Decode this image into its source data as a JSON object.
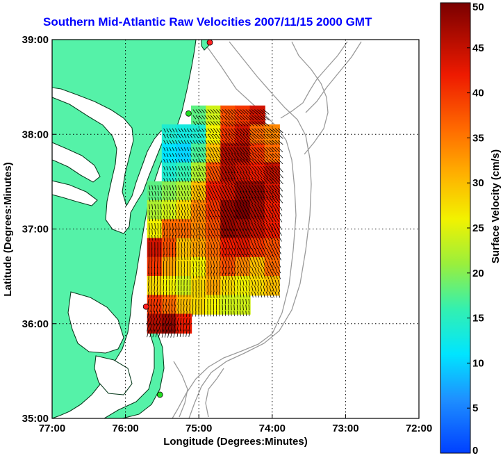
{
  "title": "Southern Mid-Atlantic Raw Velocities 2007/11/15 2000 GMT",
  "xlabel": "Longitude (Degrees:Minutes)",
  "ylabel": "Latitude (Degrees:Minutes)",
  "colorbar": {
    "label": "Surface Velocity (cm/s)",
    "min": 0,
    "max": 50,
    "ticks": [
      "0",
      "5",
      "10",
      "15",
      "20",
      "25",
      "30",
      "35",
      "40",
      "45",
      "50"
    ]
  },
  "x_ticks": [
    "77:00",
    "76:00",
    "75:00",
    "74:00",
    "73:00",
    "72:00"
  ],
  "y_ticks": [
    "39:00",
    "38:00",
    "37:00",
    "36:00",
    "35:00"
  ],
  "colors": {
    "land": "#55f2a8",
    "coast": "#0b3d20",
    "bathymetry": "#9a9a9a",
    "stations": "#ff2020",
    "stations_alt": "#22dd22",
    "title": "#0000ff"
  },
  "chart_data": {
    "type": "heatmap",
    "title": "Southern Mid-Atlantic Raw Velocities 2007/11/15 2000 GMT",
    "xlabel": "Longitude (Degrees:Minutes)",
    "ylabel": "Latitude (Degrees:Minutes)",
    "xlim": [
      -77,
      -72
    ],
    "ylim": [
      35,
      39
    ],
    "grid": true,
    "colorbar_range": [
      0,
      50
    ],
    "colorbar_label": "Surface Velocity (cm/s)",
    "field": [
      {
        "lon": -75.0,
        "lat": 38.2,
        "v": 18
      },
      {
        "lon": -74.8,
        "lat": 38.2,
        "v": 24
      },
      {
        "lon": -74.6,
        "lat": 38.2,
        "v": 38
      },
      {
        "lon": -74.4,
        "lat": 38.2,
        "v": 40
      },
      {
        "lon": -74.2,
        "lat": 38.2,
        "v": 44
      },
      {
        "lon": -75.4,
        "lat": 38.0,
        "v": 14
      },
      {
        "lon": -75.2,
        "lat": 38.0,
        "v": 13
      },
      {
        "lon": -75.0,
        "lat": 38.0,
        "v": 14
      },
      {
        "lon": -74.8,
        "lat": 38.0,
        "v": 26
      },
      {
        "lon": -74.6,
        "lat": 38.0,
        "v": 40
      },
      {
        "lon": -74.4,
        "lat": 38.0,
        "v": 44
      },
      {
        "lon": -74.2,
        "lat": 38.0,
        "v": 36
      },
      {
        "lon": -74.0,
        "lat": 38.0,
        "v": 34
      },
      {
        "lon": -75.4,
        "lat": 37.8,
        "v": 11
      },
      {
        "lon": -75.2,
        "lat": 37.8,
        "v": 10
      },
      {
        "lon": -75.0,
        "lat": 37.8,
        "v": 17
      },
      {
        "lon": -74.8,
        "lat": 37.8,
        "v": 30
      },
      {
        "lon": -74.6,
        "lat": 37.8,
        "v": 46
      },
      {
        "lon": -74.4,
        "lat": 37.8,
        "v": 47
      },
      {
        "lon": -74.2,
        "lat": 37.8,
        "v": 40
      },
      {
        "lon": -74.0,
        "lat": 37.8,
        "v": 36
      },
      {
        "lon": -75.4,
        "lat": 37.6,
        "v": 14
      },
      {
        "lon": -75.2,
        "lat": 37.6,
        "v": 16
      },
      {
        "lon": -75.0,
        "lat": 37.6,
        "v": 22
      },
      {
        "lon": -74.8,
        "lat": 37.6,
        "v": 38
      },
      {
        "lon": -74.6,
        "lat": 37.6,
        "v": 46
      },
      {
        "lon": -74.4,
        "lat": 37.6,
        "v": 44
      },
      {
        "lon": -74.2,
        "lat": 37.6,
        "v": 42
      },
      {
        "lon": -74.0,
        "lat": 37.6,
        "v": 45
      },
      {
        "lon": -75.6,
        "lat": 37.4,
        "v": 18
      },
      {
        "lon": -75.4,
        "lat": 37.4,
        "v": 20
      },
      {
        "lon": -75.2,
        "lat": 37.4,
        "v": 22
      },
      {
        "lon": -75.0,
        "lat": 37.4,
        "v": 30
      },
      {
        "lon": -74.8,
        "lat": 37.4,
        "v": 42
      },
      {
        "lon": -74.6,
        "lat": 37.4,
        "v": 44
      },
      {
        "lon": -74.4,
        "lat": 37.4,
        "v": 48
      },
      {
        "lon": -74.2,
        "lat": 37.4,
        "v": 48
      },
      {
        "lon": -74.0,
        "lat": 37.4,
        "v": 44
      },
      {
        "lon": -75.6,
        "lat": 37.2,
        "v": 22
      },
      {
        "lon": -75.4,
        "lat": 37.2,
        "v": 24
      },
      {
        "lon": -75.2,
        "lat": 37.2,
        "v": 28
      },
      {
        "lon": -75.0,
        "lat": 37.2,
        "v": 34
      },
      {
        "lon": -74.8,
        "lat": 37.2,
        "v": 40
      },
      {
        "lon": -74.6,
        "lat": 37.2,
        "v": 48
      },
      {
        "lon": -74.4,
        "lat": 37.2,
        "v": 50
      },
      {
        "lon": -74.2,
        "lat": 37.2,
        "v": 47
      },
      {
        "lon": -74.0,
        "lat": 37.2,
        "v": 42
      },
      {
        "lon": -75.6,
        "lat": 37.0,
        "v": 26
      },
      {
        "lon": -75.4,
        "lat": 37.0,
        "v": 36
      },
      {
        "lon": -75.2,
        "lat": 37.0,
        "v": 36
      },
      {
        "lon": -75.0,
        "lat": 37.0,
        "v": 34
      },
      {
        "lon": -74.8,
        "lat": 37.0,
        "v": 38
      },
      {
        "lon": -74.6,
        "lat": 37.0,
        "v": 48
      },
      {
        "lon": -74.4,
        "lat": 37.0,
        "v": 47
      },
      {
        "lon": -74.2,
        "lat": 37.0,
        "v": 45
      },
      {
        "lon": -74.0,
        "lat": 37.0,
        "v": 42
      },
      {
        "lon": -75.6,
        "lat": 36.8,
        "v": 44
      },
      {
        "lon": -75.4,
        "lat": 36.8,
        "v": 38
      },
      {
        "lon": -75.2,
        "lat": 36.8,
        "v": 30
      },
      {
        "lon": -75.0,
        "lat": 36.8,
        "v": 32
      },
      {
        "lon": -74.8,
        "lat": 36.8,
        "v": 36
      },
      {
        "lon": -74.6,
        "lat": 36.8,
        "v": 42
      },
      {
        "lon": -74.4,
        "lat": 36.8,
        "v": 43
      },
      {
        "lon": -74.2,
        "lat": 36.8,
        "v": 40
      },
      {
        "lon": -74.0,
        "lat": 36.8,
        "v": 38
      },
      {
        "lon": -75.6,
        "lat": 36.6,
        "v": 40
      },
      {
        "lon": -75.4,
        "lat": 36.6,
        "v": 32
      },
      {
        "lon": -75.2,
        "lat": 36.6,
        "v": 28
      },
      {
        "lon": -75.0,
        "lat": 36.6,
        "v": 26
      },
      {
        "lon": -74.8,
        "lat": 36.6,
        "v": 34
      },
      {
        "lon": -74.6,
        "lat": 36.6,
        "v": 38
      },
      {
        "lon": -74.4,
        "lat": 36.6,
        "v": 34
      },
      {
        "lon": -74.2,
        "lat": 36.6,
        "v": 30
      },
      {
        "lon": -74.0,
        "lat": 36.6,
        "v": 36
      },
      {
        "lon": -75.6,
        "lat": 36.4,
        "v": 28
      },
      {
        "lon": -75.4,
        "lat": 36.4,
        "v": 26
      },
      {
        "lon": -75.2,
        "lat": 36.4,
        "v": 24
      },
      {
        "lon": -75.0,
        "lat": 36.4,
        "v": 28
      },
      {
        "lon": -74.8,
        "lat": 36.4,
        "v": 32
      },
      {
        "lon": -74.6,
        "lat": 36.4,
        "v": 28
      },
      {
        "lon": -74.4,
        "lat": 36.4,
        "v": 26
      },
      {
        "lon": -74.2,
        "lat": 36.4,
        "v": 28
      },
      {
        "lon": -74.0,
        "lat": 36.4,
        "v": 30
      },
      {
        "lon": -75.6,
        "lat": 36.2,
        "v": 40
      },
      {
        "lon": -75.4,
        "lat": 36.2,
        "v": 36
      },
      {
        "lon": -75.2,
        "lat": 36.2,
        "v": 30
      },
      {
        "lon": -75.0,
        "lat": 36.2,
        "v": 28
      },
      {
        "lon": -74.8,
        "lat": 36.2,
        "v": 26
      },
      {
        "lon": -74.6,
        "lat": 36.2,
        "v": 24
      },
      {
        "lon": -74.4,
        "lat": 36.2,
        "v": 24
      },
      {
        "lon": -75.6,
        "lat": 36.0,
        "v": 46
      },
      {
        "lon": -75.4,
        "lat": 36.0,
        "v": 48
      },
      {
        "lon": -75.2,
        "lat": 36.0,
        "v": 42
      }
    ],
    "stations": [
      {
        "lon": -74.85,
        "lat": 38.97,
        "color": "#ff2020"
      },
      {
        "lon": -75.14,
        "lat": 38.22,
        "color": "#22dd22"
      },
      {
        "lon": -75.72,
        "lat": 36.18,
        "color": "#ff2020"
      },
      {
        "lon": -75.53,
        "lat": 35.25,
        "color": "#22dd22"
      }
    ]
  }
}
